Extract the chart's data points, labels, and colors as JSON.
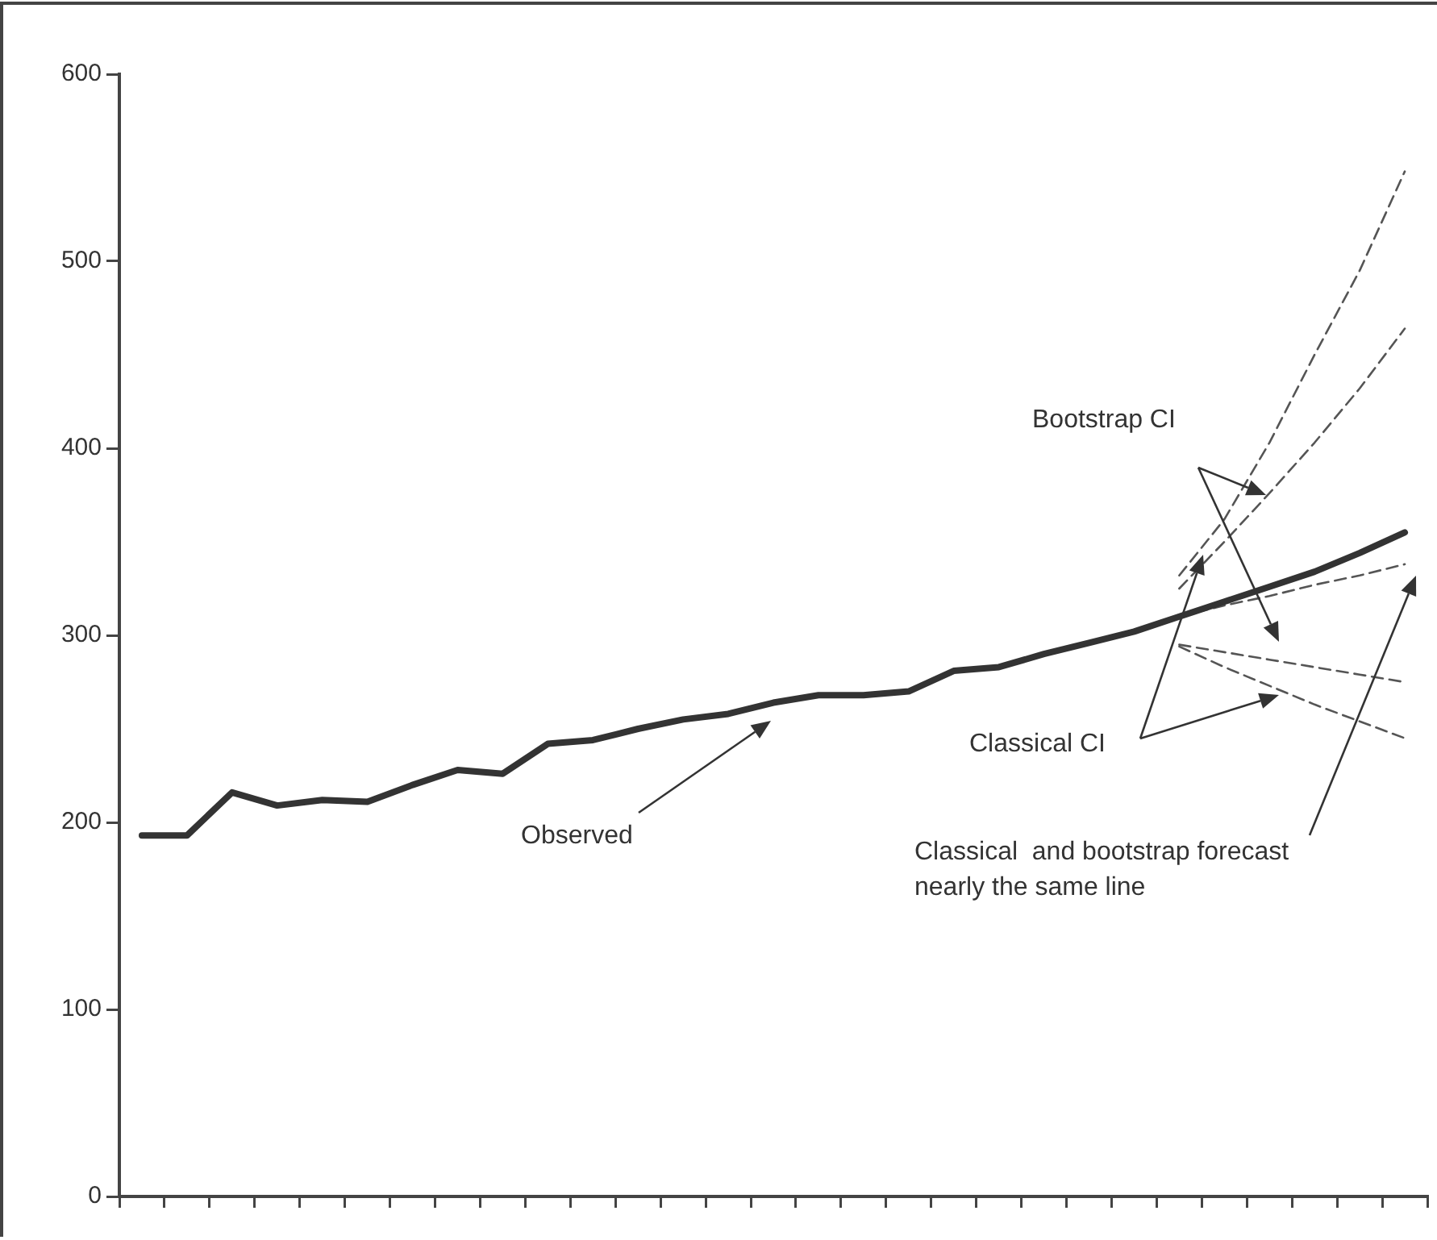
{
  "chart_data": {
    "type": "line",
    "categories": [
      null,
      null,
      null,
      null,
      null,
      null,
      null,
      null,
      null,
      null,
      null,
      null,
      null,
      null,
      null,
      null,
      null,
      null,
      null,
      null,
      null,
      null,
      null,
      null,
      null,
      null,
      null,
      null,
      null
    ],
    "series": [
      {
        "color": "#333333",
        "line_style": "solid",
        "values": [
          193,
          193,
          216,
          209,
          212,
          211,
          220,
          228,
          226,
          242,
          244,
          250,
          255,
          258,
          264,
          268,
          268,
          270,
          281,
          283,
          290,
          296,
          302,
          310,
          318,
          326,
          334,
          344,
          355
        ]
      },
      {
        "color": "#555555",
        "line_style": "dashed",
        "values": [
          null,
          null,
          null,
          null,
          null,
          null,
          null,
          null,
          null,
          null,
          null,
          null,
          null,
          null,
          null,
          null,
          null,
          null,
          null,
          null,
          null,
          null,
          null,
          310,
          316,
          321,
          327,
          332,
          338
        ]
      },
      {
        "color": "#555555",
        "line_style": "dashed",
        "values": [
          null,
          null,
          null,
          null,
          null,
          null,
          null,
          null,
          null,
          null,
          null,
          null,
          null,
          null,
          null,
          null,
          null,
          null,
          null,
          null,
          null,
          null,
          null,
          332,
          362,
          403,
          450,
          495,
          548
        ]
      },
      {
        "color": "#555555",
        "line_style": "dashed",
        "values": [
          null,
          null,
          null,
          null,
          null,
          null,
          null,
          null,
          null,
          null,
          null,
          null,
          null,
          null,
          null,
          null,
          null,
          null,
          null,
          null,
          null,
          null,
          null,
          325,
          350,
          376,
          403,
          432,
          464
        ]
      },
      {
        "color": "#555555",
        "line_style": "dashed",
        "values": [
          null,
          null,
          null,
          null,
          null,
          null,
          null,
          null,
          null,
          null,
          null,
          null,
          null,
          null,
          null,
          null,
          null,
          null,
          null,
          null,
          null,
          null,
          null,
          295,
          291,
          287,
          283,
          279,
          275
        ]
      },
      {
        "color": "#555555",
        "line_style": "dashed",
        "values": [
          null,
          null,
          null,
          null,
          null,
          null,
          null,
          null,
          null,
          null,
          null,
          null,
          null,
          null,
          null,
          null,
          null,
          null,
          null,
          null,
          null,
          null,
          null,
          294,
          283,
          273,
          263,
          254,
          245
        ]
      }
    ],
    "ylim": [
      0,
      600
    ],
    "yticks": [
      0,
      100,
      200,
      300,
      400,
      500,
      600
    ],
    "grid": false,
    "legend": false,
    "marker": "none",
    "annotations": [
      "Bootstrap CI",
      "Classical CI",
      "Classical  and bootstrap forecast nearly the same line",
      "Observed"
    ]
  }
}
